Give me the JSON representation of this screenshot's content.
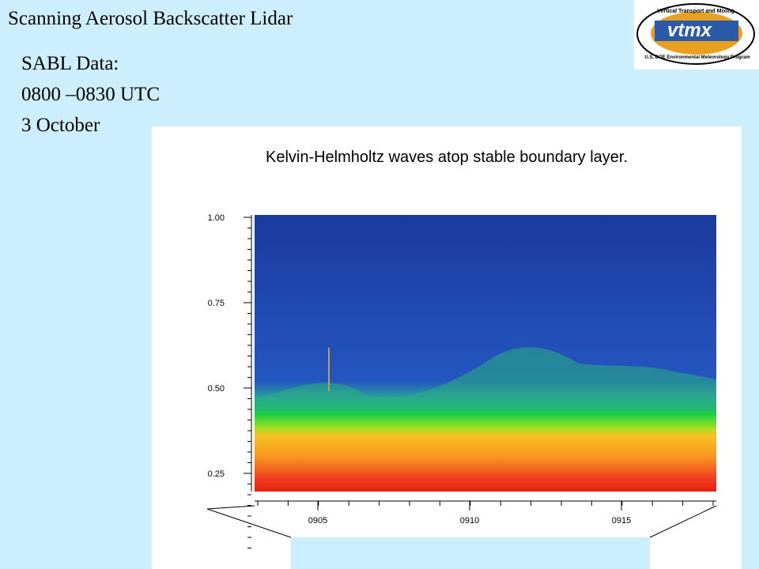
{
  "header": {
    "title": "Scanning Aerosol Backscatter Lidar",
    "lines": [
      "SABL Data:",
      "0800 –0830 UTC",
      "3 October"
    ]
  },
  "logo": {
    "name": "vtmx",
    "top_text": "Vertical Transport and Mixing",
    "bottom_text": "U.S. DOE Environmental Meteorology Program"
  },
  "figure": {
    "title": "Kelvin-Helmholtz waves atop stable boundary layer.",
    "y_labels": [
      "1.00",
      "0.75",
      "0.50",
      "0.25"
    ],
    "x_labels": [
      "0905",
      "0910",
      "0915"
    ]
  }
}
